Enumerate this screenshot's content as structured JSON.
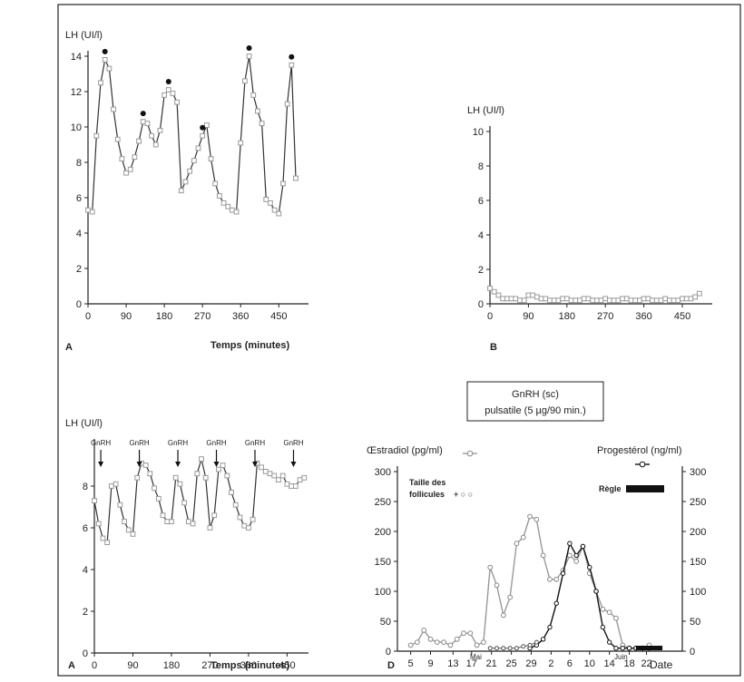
{
  "panels": {
    "A": {
      "ylabel": "LH (UI/l)",
      "xlabel": "Temps (minutes)",
      "letter": "A"
    },
    "B": {
      "ylabel": "LH (UI/l)",
      "letter": "B"
    },
    "C": {
      "ylabel": "LH (UI/l)",
      "xlabel": "Temps (minutes)",
      "letter": "A",
      "gnrh_label": "GnRH"
    },
    "D": {
      "box_line1": "GnRH (sc)",
      "box_line2": "pulsatile (5 µg/90 min.)",
      "ylabel_left": "Œstradiol (pg/ml)",
      "ylabel_right": "Progestérol (ng/ml)",
      "legend_follicle_line1": "Taille des",
      "legend_follicle_line2": "follicules",
      "legend_follicle_marker": "+ ○ ○",
      "legend_regle": "Règle",
      "xlabel": "Date",
      "month_1": "Mai",
      "month_2": "Juin",
      "letter": "D"
    }
  },
  "chart_data": [
    {
      "id": "A",
      "type": "line",
      "xlim": [
        0,
        520
      ],
      "ylim": [
        0,
        14
      ],
      "xticks": [
        0,
        90,
        180,
        270,
        360,
        450
      ],
      "yticks": [
        0,
        2,
        4,
        6,
        8,
        10,
        12,
        14
      ],
      "x": [
        0,
        10,
        20,
        30,
        40,
        50,
        60,
        70,
        80,
        90,
        100,
        110,
        120,
        130,
        140,
        150,
        160,
        170,
        180,
        190,
        200,
        210,
        220,
        230,
        240,
        250,
        260,
        270,
        280,
        290,
        300,
        310,
        320,
        330,
        340,
        350,
        360,
        370,
        380,
        390,
        400,
        410,
        420,
        430,
        440,
        450,
        460,
        470,
        480,
        490
      ],
      "y": [
        5.3,
        5.2,
        9.5,
        12.5,
        13.8,
        13.3,
        11,
        9.3,
        8.2,
        7.4,
        7.6,
        8.3,
        9.2,
        10.3,
        10.2,
        9.5,
        9,
        9.8,
        11.8,
        12.1,
        11.9,
        11.4,
        6.4,
        6.9,
        7.5,
        8.1,
        8.8,
        9.5,
        10.1,
        8.2,
        6.8,
        6.1,
        5.7,
        5.5,
        5.3,
        5.2,
        9.1,
        12.6,
        14,
        11.8,
        10.9,
        10.2,
        5.9,
        5.7,
        5.3,
        5.1,
        6.8,
        11.3,
        13.5,
        7.1
      ],
      "peaks": [
        [
          40,
          13.8
        ],
        [
          130,
          10.3
        ],
        [
          190,
          12.1
        ],
        [
          270,
          9.5
        ],
        [
          380,
          14
        ],
        [
          480,
          13.5
        ]
      ]
    },
    {
      "id": "B",
      "type": "line",
      "xlim": [
        0,
        520
      ],
      "ylim": [
        0,
        10
      ],
      "xticks": [
        0,
        90,
        180,
        270,
        360,
        450
      ],
      "yticks": [
        0,
        2,
        4,
        6,
        8,
        10
      ],
      "x": [
        0,
        10,
        20,
        30,
        40,
        50,
        60,
        70,
        80,
        90,
        100,
        110,
        120,
        130,
        140,
        150,
        160,
        170,
        180,
        190,
        200,
        210,
        220,
        230,
        240,
        250,
        260,
        270,
        280,
        290,
        300,
        310,
        320,
        330,
        340,
        350,
        360,
        370,
        380,
        390,
        400,
        410,
        420,
        430,
        440,
        450,
        460,
        470,
        480,
        490
      ],
      "y": [
        0.9,
        0.7,
        0.5,
        0.3,
        0.3,
        0.3,
        0.3,
        0.2,
        0.2,
        0.5,
        0.5,
        0.4,
        0.3,
        0.3,
        0.2,
        0.2,
        0.2,
        0.3,
        0.3,
        0.2,
        0.2,
        0.2,
        0.3,
        0.3,
        0.2,
        0.2,
        0.2,
        0.3,
        0.2,
        0.2,
        0.2,
        0.3,
        0.3,
        0.2,
        0.2,
        0.2,
        0.3,
        0.3,
        0.2,
        0.2,
        0.2,
        0.3,
        0.2,
        0.2,
        0.2,
        0.3,
        0.3,
        0.3,
        0.4,
        0.6
      ]
    },
    {
      "id": "C",
      "type": "line",
      "xlim": [
        0,
        500
      ],
      "ylim": [
        0,
        10
      ],
      "xticks": [
        0,
        90,
        180,
        270,
        360,
        450
      ],
      "yticks": [
        0,
        2,
        4,
        6,
        8
      ],
      "gnrh_at": [
        0,
        90,
        180,
        270,
        360,
        450
      ],
      "x": [
        0,
        10,
        20,
        30,
        40,
        50,
        60,
        70,
        80,
        90,
        100,
        110,
        120,
        130,
        140,
        150,
        160,
        170,
        180,
        190,
        200,
        210,
        220,
        230,
        240,
        250,
        260,
        270,
        280,
        290,
        300,
        310,
        320,
        330,
        340,
        350,
        360,
        370,
        380,
        390,
        400,
        410,
        420,
        430,
        440,
        450,
        460,
        470,
        480,
        490
      ],
      "y": [
        7.3,
        6.2,
        5.5,
        5.3,
        8,
        8.1,
        7.1,
        6.3,
        5.9,
        5.7,
        8.4,
        9.1,
        9,
        8.6,
        7.9,
        7.4,
        6.6,
        6.3,
        6.3,
        8.4,
        8.1,
        7.2,
        6.3,
        6.2,
        8.6,
        9.3,
        8.4,
        6,
        6.6,
        8.8,
        9,
        8.5,
        7.7,
        7.1,
        6.5,
        6.1,
        6,
        6.4,
        9.1,
        8.9,
        8.7,
        8.6,
        8.5,
        8.3,
        8.5,
        8.1,
        8,
        8,
        8.3,
        8.4
      ]
    },
    {
      "id": "D",
      "type": "line",
      "xlim": [
        2,
        23.5
      ],
      "ylim": [
        0,
        300
      ],
      "yticks": [
        0,
        50,
        100,
        150,
        200,
        250,
        300
      ],
      "xticks": [
        {
          "x": 3,
          "label": "5"
        },
        {
          "x": 4.5,
          "label": "9"
        },
        {
          "x": 6.2,
          "label": "13"
        },
        {
          "x": 7.6,
          "label": "17"
        },
        {
          "x": 9.1,
          "label": "21"
        },
        {
          "x": 10.6,
          "label": "25"
        },
        {
          "x": 12.1,
          "label": "29"
        },
        {
          "x": 13.6,
          "label": "2"
        },
        {
          "x": 15.0,
          "label": "6"
        },
        {
          "x": 16.5,
          "label": "10"
        },
        {
          "x": 18.0,
          "label": "14"
        },
        {
          "x": 19.5,
          "label": "18"
        },
        {
          "x": 20.8,
          "label": "22"
        }
      ],
      "series": [
        {
          "name": "Œstradiol (pg/ml)",
          "x": [
            3,
            3.5,
            4,
            4.5,
            5,
            5.5,
            6,
            6.5,
            7,
            7.5,
            8,
            8.5,
            9,
            9.5,
            10,
            10.5,
            11,
            11.5,
            12,
            12.5,
            13,
            13.5,
            14,
            14.5,
            15,
            15.5,
            16,
            16.5,
            17,
            17.5,
            18,
            18.5,
            19,
            19.5,
            20,
            20.5,
            21
          ],
          "y": [
            10,
            15,
            35,
            20,
            15,
            15,
            10,
            20,
            30,
            30,
            10,
            15,
            140,
            110,
            60,
            90,
            180,
            190,
            225,
            220,
            160,
            120,
            120,
            135,
            160,
            150,
            175,
            130,
            100,
            70,
            65,
            55,
            10,
            5,
            5,
            5,
            10
          ]
        },
        {
          "name": "Progestérol (ng/ml)",
          "x": [
            12,
            12.5,
            13,
            13.5,
            14,
            14.5,
            15,
            15.5,
            16,
            16.5,
            17,
            17.5,
            18,
            18.5,
            19,
            19.5,
            20,
            20.5,
            21
          ],
          "y": [
            5,
            10,
            20,
            40,
            80,
            130,
            180,
            160,
            175,
            140,
            100,
            40,
            15,
            5,
            5,
            5,
            5,
            5,
            5
          ]
        },
        {
          "name": "Taille des follicules",
          "x": [
            9,
            9.5,
            10,
            10.5,
            11,
            11.5,
            12,
            12.5
          ],
          "y": [
            5,
            5,
            5,
            5,
            5,
            8,
            10,
            15
          ]
        }
      ],
      "regle_interval": [
        20,
        22
      ]
    }
  ]
}
